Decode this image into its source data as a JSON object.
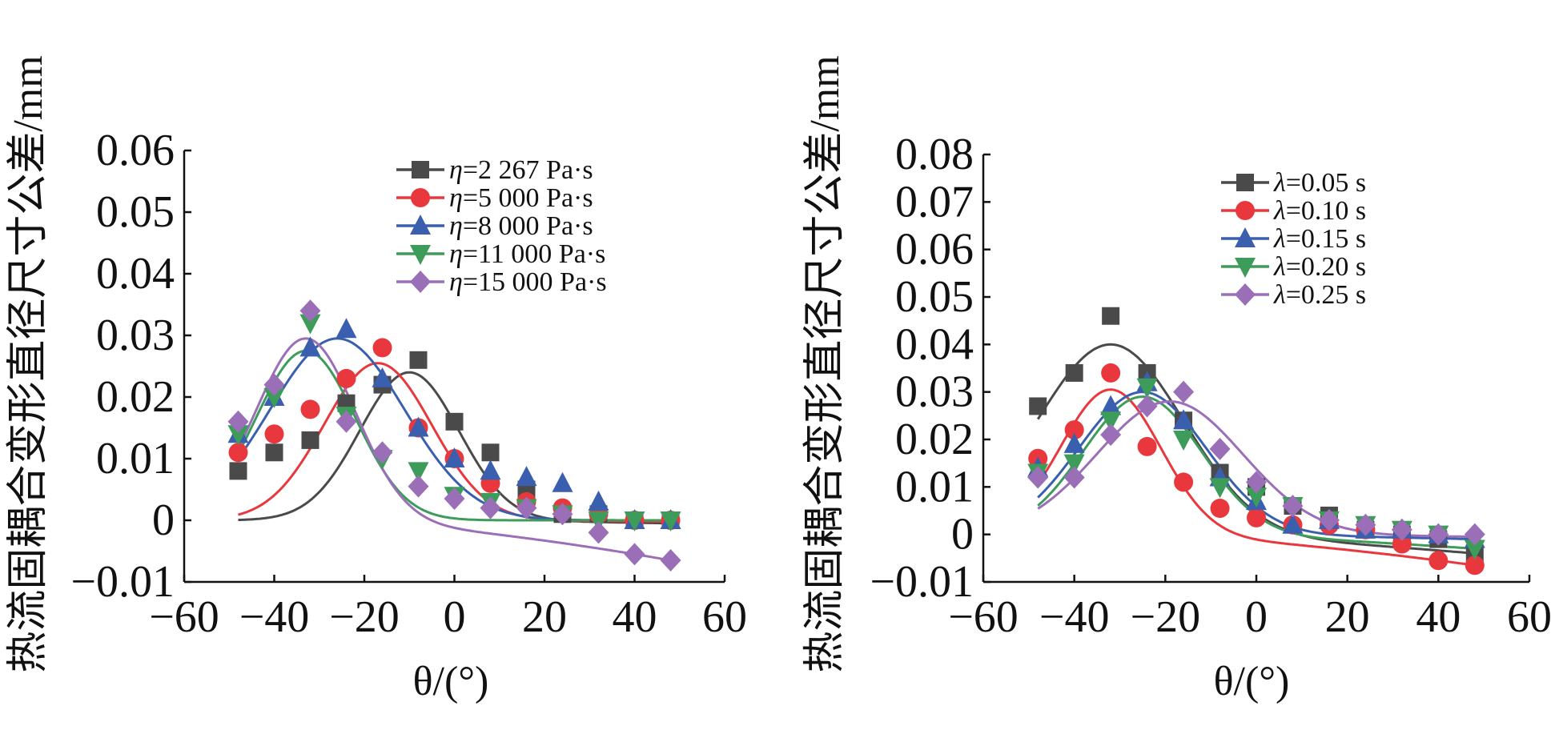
{
  "colors": {
    "black": "#4a4a4a",
    "red": "#e8383d",
    "blue": "#3a5fae",
    "green": "#3d9c5a",
    "purple": "#9b6fb8"
  },
  "chart_data": [
    {
      "type": "line",
      "xlabel": "θ/(°)",
      "ylabel": "热流固耦合变形直径尺寸公差/mm",
      "xlim": [
        -60,
        60
      ],
      "ylim": [
        -0.01,
        0.06
      ],
      "xticks": [
        -60,
        -40,
        -20,
        0,
        20,
        40,
        60
      ],
      "xtick_labels": [
        "−60",
        "−40",
        "−20",
        "0",
        "20",
        "40",
        "60"
      ],
      "yticks": [
        -0.01,
        0,
        0.01,
        0.02,
        0.03,
        0.04,
        0.05,
        0.06
      ],
      "ytick_labels": [
        "−0.01",
        "0",
        "0.01",
        "0.02",
        "0.03",
        "0.04",
        "0.05",
        "0.06"
      ],
      "legend_position": "top-right",
      "x": [
        -48,
        -40,
        -32,
        -24,
        -16,
        -8,
        0,
        8,
        16,
        24,
        32,
        40,
        48
      ],
      "series": [
        {
          "name": "η=2 267 Pa·s",
          "label_symbol": "η",
          "label_rest": "=2 267 Pa·s",
          "color": "black",
          "marker": "square",
          "values": [
            0.008,
            0.011,
            0.013,
            0.019,
            0.022,
            0.026,
            0.016,
            0.011,
            0.005,
            0.001,
            0.001,
            0.0,
            0.0
          ]
        },
        {
          "name": "η=5 000 Pa·s",
          "label_symbol": "η",
          "label_rest": "=5 000 Pa·s",
          "color": "red",
          "marker": "circle",
          "values": [
            0.011,
            0.014,
            0.018,
            0.023,
            0.028,
            0.015,
            0.01,
            0.006,
            0.003,
            0.002,
            0.001,
            0.0,
            0.0
          ]
        },
        {
          "name": "η=8 000 Pa·s",
          "label_symbol": "η",
          "label_rest": "=8 000 Pa·s",
          "color": "blue",
          "marker": "triangle-up",
          "values": [
            0.014,
            0.02,
            0.028,
            0.031,
            0.023,
            0.015,
            0.01,
            0.008,
            0.007,
            0.006,
            0.003,
            0.0,
            0.0
          ]
        },
        {
          "name": "η=11 000 Pa·s",
          "label_symbol": "η",
          "label_rest": "=11 000 Pa·s",
          "color": "green",
          "marker": "triangle-down",
          "values": [
            0.014,
            0.02,
            0.032,
            0.017,
            0.01,
            0.008,
            0.004,
            0.003,
            0.002,
            0.001,
            0.0,
            0.0,
            0.0
          ]
        },
        {
          "name": "η=15 000 Pa·s",
          "label_symbol": "η",
          "label_rest": "=15 000 Pa·s",
          "color": "purple",
          "marker": "diamond",
          "values": [
            0.016,
            0.022,
            0.034,
            0.016,
            0.011,
            0.0055,
            0.0035,
            0.002,
            0.002,
            0.001,
            -0.002,
            -0.0055,
            -0.0065
          ]
        }
      ],
      "fit_curves": [
        {
          "series": "η=2 267 Pa·s",
          "color": "black",
          "center": -10,
          "amp": 0.024,
          "width": 11,
          "tail": -0.0005
        },
        {
          "series": "η=5 000 Pa·s",
          "color": "red",
          "center": -17,
          "amp": 0.0255,
          "width": 12,
          "tail": -0.0002
        },
        {
          "series": "η=8 000 Pa·s",
          "color": "blue",
          "center": -26,
          "amp": 0.0295,
          "width": 15,
          "tail": 0.0
        },
        {
          "series": "η=11 000 Pa·s",
          "color": "green",
          "center": -33,
          "amp": 0.0275,
          "width": 11,
          "tail": 0.0
        },
        {
          "series": "η=15 000 Pa·s",
          "color": "purple",
          "center": -33,
          "amp": 0.0295,
          "width": 11,
          "tail": -0.0065
        }
      ]
    },
    {
      "type": "line",
      "xlabel": "θ/(°)",
      "ylabel": "热流固耦合变形直径尺寸公差/mm",
      "xlim": [
        -60,
        60
      ],
      "ylim": [
        -0.01,
        0.08
      ],
      "xticks": [
        -60,
        -40,
        -20,
        0,
        20,
        40,
        60
      ],
      "xtick_labels": [
        "−60",
        "−40",
        "−20",
        "0",
        "20",
        "40",
        "60"
      ],
      "yticks": [
        -0.01,
        0,
        0.01,
        0.02,
        0.03,
        0.04,
        0.05,
        0.06,
        0.07,
        0.08
      ],
      "ytick_labels": [
        "−0.01",
        "0",
        "0.01",
        "0.02",
        "0.03",
        "0.04",
        "0.05",
        "0.06",
        "0.07",
        "0.08"
      ],
      "legend_position": "top-right",
      "x": [
        -48,
        -40,
        -32,
        -24,
        -16,
        -8,
        0,
        8,
        16,
        24,
        32,
        40,
        48
      ],
      "series": [
        {
          "name": "λ=0.05 s",
          "label_symbol": "λ",
          "label_rest": "=0.05 s",
          "color": "black",
          "marker": "square",
          "values": [
            0.027,
            0.034,
            0.046,
            0.034,
            0.024,
            0.013,
            0.01,
            0.006,
            0.004,
            0.001,
            0.0,
            -0.001,
            -0.004
          ]
        },
        {
          "name": "λ=0.10 s",
          "label_symbol": "λ",
          "label_rest": "=0.10 s",
          "color": "red",
          "marker": "circle",
          "values": [
            0.016,
            0.022,
            0.034,
            0.0185,
            0.011,
            0.0055,
            0.0035,
            0.002,
            0.002,
            0.001,
            -0.002,
            -0.0055,
            -0.0065
          ]
        },
        {
          "name": "λ=0.15 s",
          "label_symbol": "λ",
          "label_rest": "=0.15 s",
          "color": "blue",
          "marker": "triangle-up",
          "values": [
            0.014,
            0.019,
            0.027,
            0.032,
            0.024,
            0.012,
            0.007,
            0.002,
            0.003,
            0.001,
            0.001,
            0.0,
            -0.001
          ]
        },
        {
          "name": "λ=0.20 s",
          "label_symbol": "λ",
          "label_rest": "=0.20 s",
          "color": "green",
          "marker": "triangle-down",
          "values": [
            0.013,
            0.015,
            0.024,
            0.031,
            0.02,
            0.01,
            0.008,
            0.006,
            0.003,
            0.002,
            0.001,
            0.0,
            -0.003
          ]
        },
        {
          "name": "λ=0.25 s",
          "label_symbol": "λ",
          "label_rest": "=0.25 s",
          "color": "purple",
          "marker": "diamond",
          "values": [
            0.012,
            0.012,
            0.021,
            0.027,
            0.03,
            0.018,
            0.011,
            0.006,
            0.003,
            0.002,
            0.001,
            0.0,
            0.0
          ]
        }
      ],
      "fit_curves": [
        {
          "series": "λ=0.05 s",
          "color": "black",
          "center": -32,
          "amp": 0.04,
          "width": 16,
          "tail": -0.004
        },
        {
          "series": "λ=0.10 s",
          "color": "red",
          "center": -32,
          "amp": 0.0305,
          "width": 11,
          "tail": -0.0065
        },
        {
          "series": "λ=0.15 s",
          "color": "blue",
          "center": -25,
          "amp": 0.03,
          "width": 14,
          "tail": -0.001
        },
        {
          "series": "λ=0.20 s",
          "color": "green",
          "center": -25,
          "amp": 0.029,
          "width": 13,
          "tail": -0.003
        },
        {
          "series": "λ=0.25 s",
          "color": "purple",
          "center": -19,
          "amp": 0.028,
          "width": 16,
          "tail": -0.0005
        }
      ]
    }
  ]
}
